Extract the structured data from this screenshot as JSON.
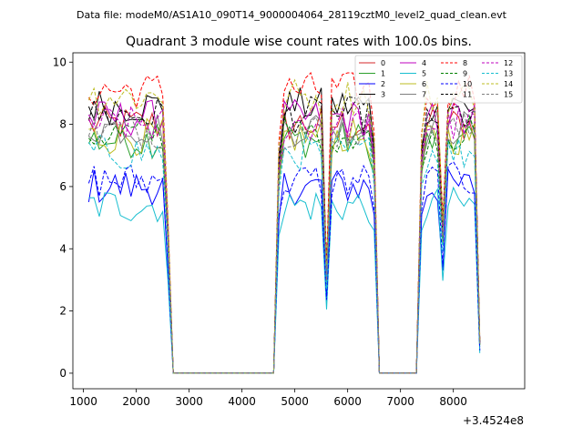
{
  "suptitle": "Data file: modeM0/AS1A10_090T14_9000004064_28119cztM0_level2_quad_clean.evt",
  "chart_data": {
    "type": "line",
    "title": "Quadrant 3 module wise count rates with 100.0s bins.",
    "xlabel": "",
    "ylabel": "",
    "x_offset_label": "+3.4524e8",
    "xlim": [
      800,
      9350
    ],
    "ylim": [
      -0.5,
      10.3
    ],
    "xticks": [
      1000,
      2000,
      3000,
      4000,
      5000,
      6000,
      7000,
      8000
    ],
    "xtick_labels": [
      "1000",
      "2000",
      "3000",
      "4000",
      "5000",
      "6000",
      "7000",
      "8000"
    ],
    "yticks": [
      0,
      2,
      4,
      6,
      8,
      10
    ],
    "ytick_labels": [
      "0",
      "2",
      "4",
      "6",
      "8",
      "10"
    ],
    "legend_position": "top-right",
    "legend_columns": 4,
    "segments": [
      {
        "x": [
          1100,
          1200,
          1300,
          1400,
          1500,
          1600,
          1700,
          1800,
          1900,
          2000,
          2100,
          2200,
          2300,
          2400,
          2500,
          2600,
          2700
        ]
      },
      {
        "x": [
          2700,
          4600
        ]
      },
      {
        "x": [
          4600,
          4700,
          4800,
          4900,
          5000,
          5100,
          5200,
          5300,
          5400,
          5500,
          5600,
          5700,
          5800,
          5900,
          6000,
          6100,
          6200,
          6300,
          6400,
          6500,
          6600
        ]
      },
      {
        "x": [
          6600,
          7300
        ]
      },
      {
        "x": [
          7300,
          7400,
          7500,
          7600,
          7700,
          7800,
          7900,
          8000,
          8100,
          8200,
          8300,
          8400,
          8500
        ]
      }
    ],
    "series": [
      {
        "name": "0",
        "color": "#d62728",
        "dash": false,
        "level": 8.0
      },
      {
        "name": "1",
        "color": "#2ca02c",
        "dash": false,
        "level": 7.5
      },
      {
        "name": "2",
        "color": "#0000ff",
        "dash": false,
        "level": 6.0
      },
      {
        "name": "3",
        "color": "#000000",
        "dash": false,
        "level": 8.6
      },
      {
        "name": "4",
        "color": "#bf00bf",
        "dash": false,
        "level": 8.2
      },
      {
        "name": "5",
        "color": "#17becf",
        "dash": false,
        "level": 5.4
      },
      {
        "name": "6",
        "color": "#bcbd22",
        "dash": false,
        "level": 7.6
      },
      {
        "name": "7",
        "color": "#7f7f7f",
        "dash": false,
        "level": 7.9
      },
      {
        "name": "8",
        "color": "#ff0000",
        "dash": true,
        "level": 9.1
      },
      {
        "name": "9",
        "color": "#008000",
        "dash": true,
        "level": 7.7
      },
      {
        "name": "10",
        "color": "#0000ff",
        "dash": true,
        "level": 6.2
      },
      {
        "name": "11",
        "color": "#000000",
        "dash": true,
        "level": 8.3
      },
      {
        "name": "12",
        "color": "#bf00bf",
        "dash": true,
        "level": 8.0
      },
      {
        "name": "13",
        "color": "#17becf",
        "dash": true,
        "level": 7.1
      },
      {
        "name": "14",
        "color": "#bcbd22",
        "dash": true,
        "level": 8.9
      },
      {
        "name": "15",
        "color": "#7f7f7f",
        "dash": true,
        "level": 7.8
      }
    ]
  }
}
